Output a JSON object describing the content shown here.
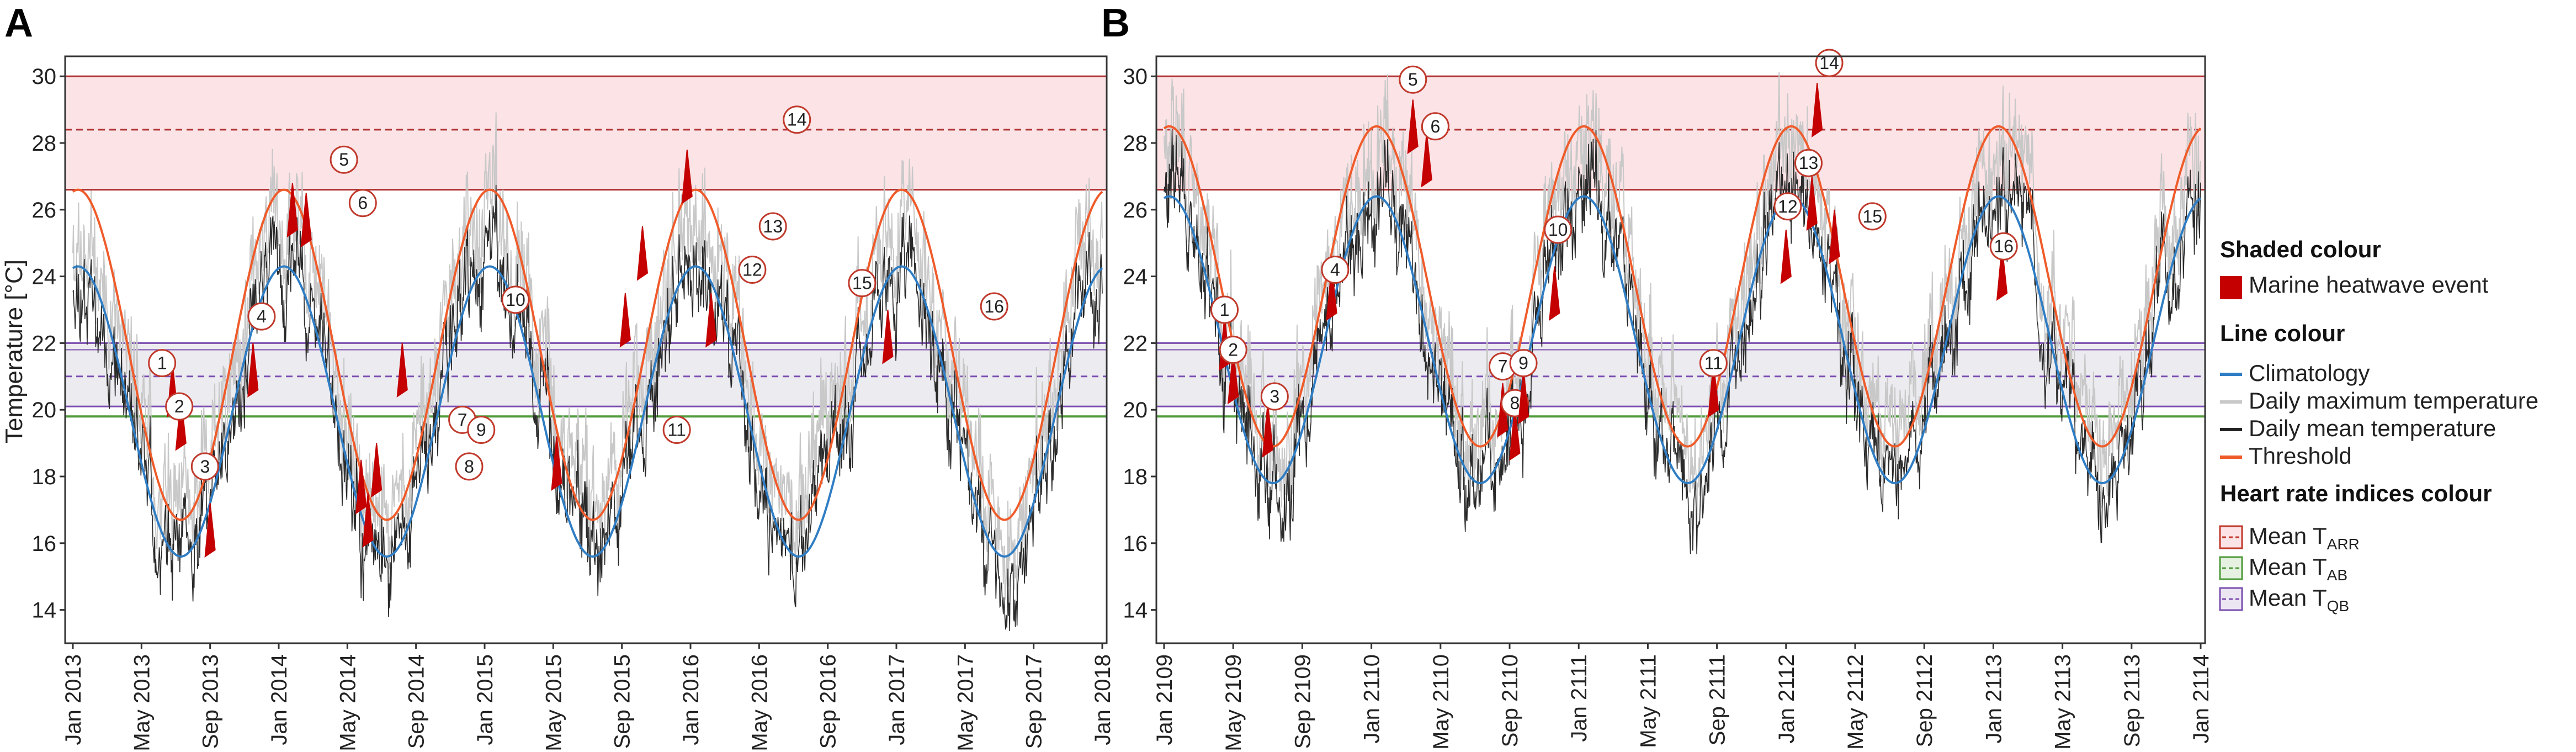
{
  "chart_data": [
    {
      "type": "line",
      "panel_label": "A",
      "ylabel": "Temperature [°C]",
      "ylim": [
        13,
        30.5
      ],
      "yticks": [
        14,
        16,
        18,
        20,
        22,
        24,
        26,
        28,
        30
      ],
      "xticks": [
        "Jan 2013",
        "May 2013",
        "Sep 2013",
        "Jan 2014",
        "May 2014",
        "Sep 2014",
        "Jan 2015",
        "May 2015",
        "Sep 2015",
        "Jan 2016",
        "May 2016",
        "Sep 2016",
        "Jan 2017",
        "May 2017",
        "Sep 2017",
        "Jan 2018"
      ],
      "climatology": {
        "min": 15.6,
        "max": 24.3,
        "trough_month": 6.3
      },
      "threshold": {
        "min": 16.7,
        "max": 26.6,
        "trough_month": 6.3
      },
      "series": [
        {
          "name": "Climatology",
          "color": "#2f7dc4"
        },
        {
          "name": "Daily maximum temperature",
          "color": "#c8c8c8"
        },
        {
          "name": "Daily mean temperature",
          "color": "#222222"
        },
        {
          "name": "Threshold",
          "color": "#ef5b2a"
        }
      ],
      "bands": {
        "ARR": {
          "low": 26.6,
          "high": 30.0,
          "mean": 28.4
        },
        "QB": {
          "low": 20.1,
          "high": 22.0,
          "mean": 21.0
        },
        "AB": {
          "mean": 19.8
        },
        "QB_inner_high": 21.8
      },
      "events": [
        {
          "label": "1",
          "month": 5.8,
          "temp": 21.4,
          "lx": 5.2,
          "ly": 21.4
        },
        {
          "label": "2",
          "month": 6.3,
          "temp": 20.4,
          "lx": 6.2,
          "ly": 20.1
        },
        {
          "label": "3",
          "month": 8.0,
          "temp": 17.2,
          "lx": 7.7,
          "ly": 18.3
        },
        {
          "label": "4",
          "month": 10.5,
          "temp": 22.0,
          "lx": 11.0,
          "ly": 22.8
        },
        {
          "label": "5",
          "month": 12.8,
          "temp": 26.8,
          "lx": 15.8,
          "ly": 27.5
        },
        {
          "label": "6",
          "month": 13.6,
          "temp": 26.5,
          "lx": 16.9,
          "ly": 26.2
        },
        {
          "label": "7",
          "month": 16.8,
          "temp": 18.5,
          "lx": 22.7,
          "ly": 19.7
        },
        {
          "label": "8",
          "month": 17.2,
          "temp": 17.5,
          "lx": 23.1,
          "ly": 18.3
        },
        {
          "label": "9",
          "month": 17.7,
          "temp": 19.0,
          "lx": 23.8,
          "ly": 19.4
        },
        {
          "label": "10",
          "month": 19.2,
          "temp": 22.0,
          "lx": 25.8,
          "ly": 23.3
        },
        {
          "label": "11",
          "month": 28.2,
          "temp": 19.2,
          "lx": 35.2,
          "ly": 19.4
        },
        {
          "label": "12",
          "month": 32.2,
          "temp": 23.5,
          "lx": 39.6,
          "ly": 24.2
        },
        {
          "label": "13",
          "month": 33.2,
          "temp": 25.5,
          "lx": 40.8,
          "ly": 25.5
        },
        {
          "label": "14",
          "month": 35.8,
          "temp": 27.8,
          "lx": 42.2,
          "ly": 28.7
        },
        {
          "label": "15",
          "month": 37.2,
          "temp": 23.5,
          "lx": 46.0,
          "ly": 23.8
        },
        {
          "label": "16",
          "month": 47.5,
          "temp": 23.0,
          "lx": 53.7,
          "ly": 23.1
        }
      ]
    },
    {
      "type": "line",
      "panel_label": "B",
      "ylabel": "",
      "ylim": [
        13,
        30.5
      ],
      "yticks": [
        14,
        16,
        18,
        20,
        22,
        24,
        26,
        28,
        30
      ],
      "xticks": [
        "Jan 2109",
        "May 2109",
        "Sep 2109",
        "Jan 2110",
        "May 2110",
        "Sep 2110",
        "Jan 2111",
        "May 2111",
        "Sep 2111",
        "Jan 2112",
        "May 2112",
        "Sep 2112",
        "Jan 2113",
        "May 2113",
        "Sep 2113",
        "Jan 2114"
      ],
      "climatology": {
        "min": 17.8,
        "max": 26.4,
        "trough_month": 6.3
      },
      "threshold": {
        "min": 18.9,
        "max": 28.5,
        "trough_month": 6.3
      },
      "series": [
        {
          "name": "Climatology",
          "color": "#2f7dc4"
        },
        {
          "name": "Daily maximum temperature",
          "color": "#c8c8c8"
        },
        {
          "name": "Daily mean temperature",
          "color": "#222222"
        },
        {
          "name": "Threshold",
          "color": "#ef5b2a"
        }
      ],
      "bands": {
        "ARR": {
          "low": 26.6,
          "high": 30.0,
          "mean": 28.4
        },
        "QB": {
          "low": 20.1,
          "high": 22.0,
          "mean": 21.0
        },
        "AB": {
          "mean": 19.8
        },
        "QB_inner_high": 21.8
      },
      "events": [
        {
          "label": "1",
          "month": 3.5,
          "temp": 22.8,
          "lx": 3.5,
          "ly": 23.0
        },
        {
          "label": "2",
          "month": 4.0,
          "temp": 21.8,
          "lx": 4.0,
          "ly": 21.8
        },
        {
          "label": "3",
          "month": 6.0,
          "temp": 20.2,
          "lx": 6.4,
          "ly": 20.4
        },
        {
          "label": "4",
          "month": 9.7,
          "temp": 24.3,
          "lx": 9.9,
          "ly": 24.2
        },
        {
          "label": "5",
          "month": 14.4,
          "temp": 29.3,
          "lx": 14.4,
          "ly": 29.9
        },
        {
          "label": "6",
          "month": 15.2,
          "temp": 28.3,
          "lx": 15.7,
          "ly": 28.5
        },
        {
          "label": "7",
          "month": 19.6,
          "temp": 20.8,
          "lx": 19.6,
          "ly": 21.3
        },
        {
          "label": "8",
          "month": 20.3,
          "temp": 20.1,
          "lx": 20.3,
          "ly": 20.2
        },
        {
          "label": "9",
          "month": 20.8,
          "temp": 21.2,
          "lx": 20.8,
          "ly": 21.4
        },
        {
          "label": "10",
          "month": 22.6,
          "temp": 24.3,
          "lx": 22.8,
          "ly": 25.4
        },
        {
          "label": "11",
          "month": 31.8,
          "temp": 21.4,
          "lx": 31.8,
          "ly": 21.4
        },
        {
          "label": "12",
          "month": 36.0,
          "temp": 25.4,
          "lx": 36.1,
          "ly": 26.1
        },
        {
          "label": "13",
          "month": 37.5,
          "temp": 27.0,
          "lx": 37.3,
          "ly": 27.4
        },
        {
          "label": "14",
          "month": 37.8,
          "temp": 29.8,
          "lx": 38.5,
          "ly": 30.4
        },
        {
          "label": "15",
          "month": 38.8,
          "temp": 26.0,
          "lx": 41.0,
          "ly": 25.8
        },
        {
          "label": "16",
          "month": 48.5,
          "temp": 24.9,
          "lx": 48.6,
          "ly": 24.9
        }
      ]
    }
  ],
  "legend": {
    "shaded_heading": "Shaded colour",
    "shaded_items": [
      {
        "label": "Marine heatwave event",
        "color": "#c40000"
      }
    ],
    "line_heading": "Line colour",
    "line_items": [
      {
        "label": "Climatology",
        "color": "#2f7dc4"
      },
      {
        "label": "Daily maximum temperature",
        "color": "#c8c8c8"
      },
      {
        "label": "Daily mean temperature",
        "color": "#222222"
      },
      {
        "label": "Threshold",
        "color": "#ef5b2a"
      }
    ],
    "heart_heading": "Heart rate indices colour",
    "heart_items": [
      {
        "main": "Mean T",
        "sub": "ARR",
        "color": "#c0392b",
        "fill": "#fbe3e6"
      },
      {
        "main": "Mean T",
        "sub": "AB",
        "color": "#4f9a3a",
        "fill": "#e6f1e1"
      },
      {
        "main": "Mean T",
        "sub": "QB",
        "color": "#7b4fb0",
        "fill": "#ece6f3"
      }
    ]
  },
  "colors": {
    "arr_fill": "#fbe3e6",
    "arr_line": "#b03030",
    "qb_fill": "#ececf0",
    "qb_line": "#7b4fb0",
    "ab_line": "#4f9a3a",
    "event": "#c40000"
  }
}
